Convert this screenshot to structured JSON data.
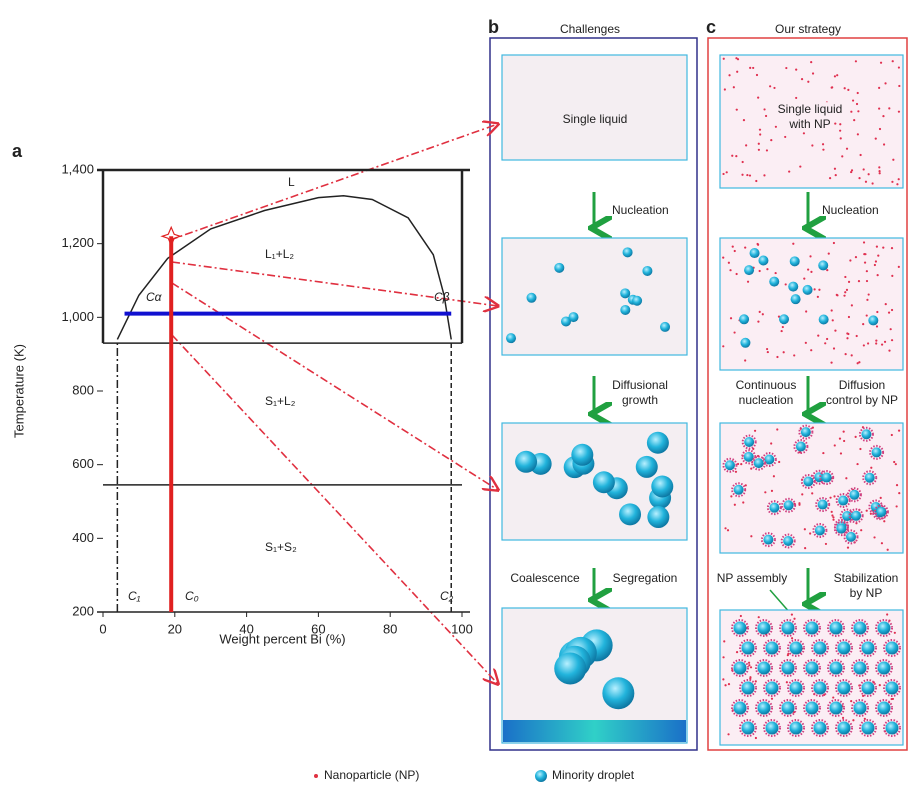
{
  "panel_label": "a",
  "chart_data": {
    "type": "line",
    "x_label": "Weight percent Bi (%)",
    "y_label": "Temperature (K)",
    "xlim": [
      0,
      100
    ],
    "ylim": [
      200,
      1400
    ],
    "xticks": [
      0,
      20,
      40,
      60,
      80,
      100
    ],
    "yticks": [
      200,
      400,
      600,
      800,
      {
        "value": 1000,
        "label": "1,000"
      },
      {
        "value": 1200,
        "label": "1,200"
      },
      {
        "value": 1400,
        "label": "1,400"
      }
    ],
    "series": [
      {
        "color": "#222222",
        "line_style": "solid",
        "x": [
          4,
          10,
          18,
          30,
          45,
          60,
          67,
          75,
          85,
          92,
          95,
          97
        ],
        "values": [
          940,
          1060,
          1160,
          1240,
          1290,
          1325,
          1330,
          1320,
          1270,
          1170,
          1060,
          940
        ]
      },
      {
        "color": "#222222",
        "line_style": "solid",
        "x": [
          0,
          100
        ],
        "values": [
          930,
          930
        ]
      },
      {
        "color": "#222222",
        "line_style": "solid",
        "x": [
          0,
          100
        ],
        "values": [
          545,
          545
        ]
      },
      {
        "color": "#1010d0",
        "line_style": "thick",
        "x": [
          6,
          97
        ],
        "values": [
          1010,
          1010
        ]
      },
      {
        "color": "#e02020",
        "line_style": "thick",
        "x": [
          19,
          19
        ],
        "values": [
          200,
          1220
        ]
      },
      {
        "color": "#222222",
        "line_style": "dashdot",
        "x": [
          4,
          4
        ],
        "values": [
          200,
          930
        ]
      },
      {
        "color": "#222222",
        "line_style": "dashed",
        "x": [
          97,
          97
        ],
        "values": [
          200,
          930
        ]
      }
    ],
    "annotations": [
      "L",
      "L₁+L₂",
      "S₁+L₂",
      "S₁+S₂",
      "Cα",
      "Cβ",
      "C₁",
      "C₀",
      "C₂"
    ]
  },
  "panel_b": {
    "label": "b",
    "title": "Challenges",
    "box_text": [
      "Single liquid"
    ],
    "steps": [
      [
        "Nucleation"
      ],
      [
        "Diffusional",
        "growth"
      ],
      [
        "Coalescence"
      ],
      [
        "Segregation"
      ]
    ]
  },
  "panel_c": {
    "label": "c",
    "title": "Our strategy",
    "box_text": [
      "Single liquid",
      "with NP"
    ],
    "steps": [
      [
        "Nucleation"
      ],
      [
        "Continuous",
        "nucleation"
      ],
      [
        "Diffusion",
        "control by NP"
      ],
      [
        "NP assembly"
      ],
      [
        "Stabilization",
        "by NP"
      ]
    ]
  },
  "legend": [
    "Nanoparticle (NP)",
    "Minority droplet"
  ]
}
